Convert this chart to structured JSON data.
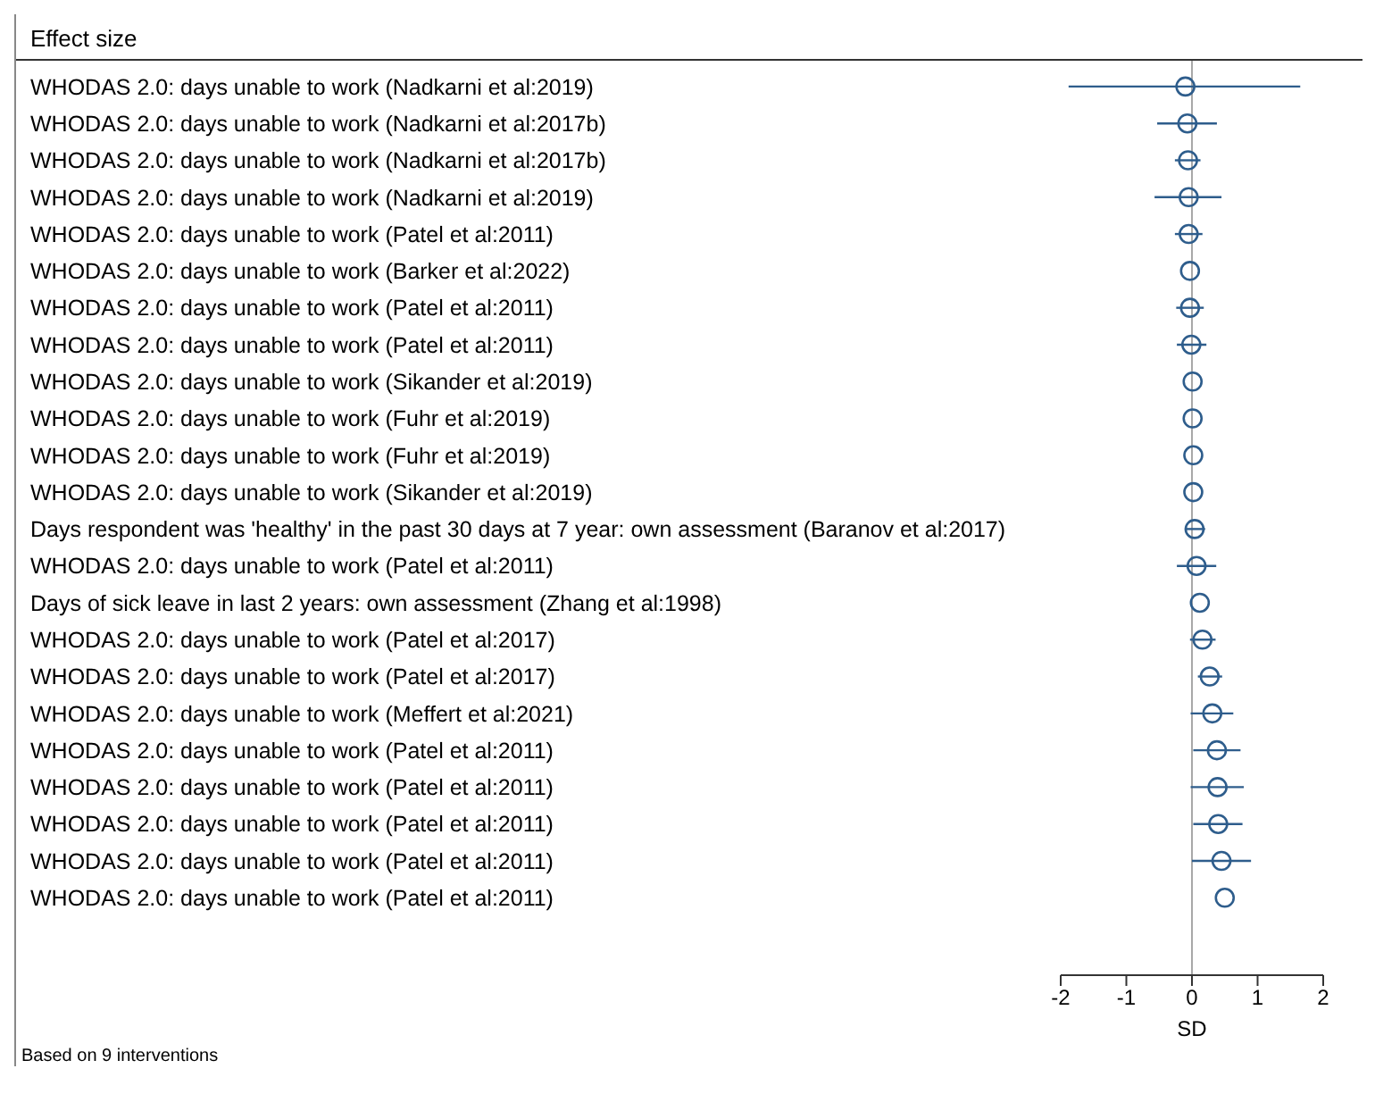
{
  "chart_data": {
    "type": "scatter",
    "title": "Effect size",
    "xlabel": "SD",
    "orientation": "horizontal",
    "categories": [
      "WHODAS 2.0: days unable to work (Nadkarni et al:2019)",
      "WHODAS 2.0: days unable to work (Nadkarni et al:2017b)",
      "WHODAS 2.0: days unable to work (Nadkarni et al:2017b)",
      "WHODAS 2.0: days unable to work (Nadkarni et al:2019)",
      "WHODAS 2.0: days unable to work (Patel et al:2011)",
      "WHODAS 2.0: days unable to work (Barker et al:2022)",
      "WHODAS 2.0: days unable to work (Patel et al:2011)",
      "WHODAS 2.0: days unable to work (Patel et al:2011)",
      "WHODAS 2.0: days unable to work (Sikander et al:2019)",
      "WHODAS 2.0: days unable to work (Fuhr et al:2019)",
      "WHODAS 2.0: days unable to work (Fuhr et al:2019)",
      "WHODAS 2.0: days unable to work (Sikander et al:2019)",
      "Days respondent was 'healthy' in the past 30 days at 7 year: own assessment  (Baranov et al:2017)",
      "WHODAS 2.0: days unable to work (Patel et al:2011)",
      "Days of sick leave in last 2 years: own assessment  (Zhang et al:1998)",
      "WHODAS 2.0: days unable to work (Patel et al:2017)",
      "WHODAS 2.0: days unable to work (Patel et al:2017)",
      "WHODAS 2.0: days unable to work (Meffert et al:2021)",
      "WHODAS 2.0: days unable to work (Patel et al:2011)",
      "WHODAS 2.0: days unable to work (Patel et al:2011)",
      "WHODAS 2.0: days unable to work (Patel et al:2011)",
      "WHODAS 2.0: days unable to work (Patel et al:2011)",
      "WHODAS 2.0: days unable to work (Patel et al:2011)"
    ],
    "values": [
      -0.1,
      -0.07,
      -0.06,
      -0.05,
      -0.05,
      -0.03,
      -0.03,
      -0.01,
      0.01,
      0.01,
      0.02,
      0.02,
      0.04,
      0.07,
      0.12,
      0.16,
      0.27,
      0.31,
      0.38,
      0.39,
      0.4,
      0.45,
      0.5
    ],
    "errors": [
      [
        -1.88,
        1.65
      ],
      [
        -0.53,
        0.38
      ],
      [
        -0.26,
        0.13
      ],
      [
        -0.57,
        0.45
      ],
      [
        -0.26,
        0.16
      ],
      null,
      [
        -0.24,
        0.18
      ],
      [
        -0.23,
        0.22
      ],
      null,
      null,
      null,
      null,
      [
        -0.11,
        0.2
      ],
      [
        -0.23,
        0.37
      ],
      null,
      [
        -0.03,
        0.36
      ],
      [
        0.09,
        0.46
      ],
      [
        -0.02,
        0.63
      ],
      [
        0.02,
        0.74
      ],
      [
        -0.02,
        0.79
      ],
      [
        0.02,
        0.77
      ],
      [
        0,
        0.9
      ],
      null
    ],
    "color": "#2e5d8c",
    "marker": "circle",
    "xlim": [
      -2,
      2
    ],
    "xticks": [
      -2,
      -1,
      0,
      1,
      2
    ],
    "ref_lines": [
      {
        "axis": "x",
        "value": 0,
        "color": "#a8a8a8"
      }
    ],
    "annotations": [
      "Based on 9 interventions"
    ]
  }
}
